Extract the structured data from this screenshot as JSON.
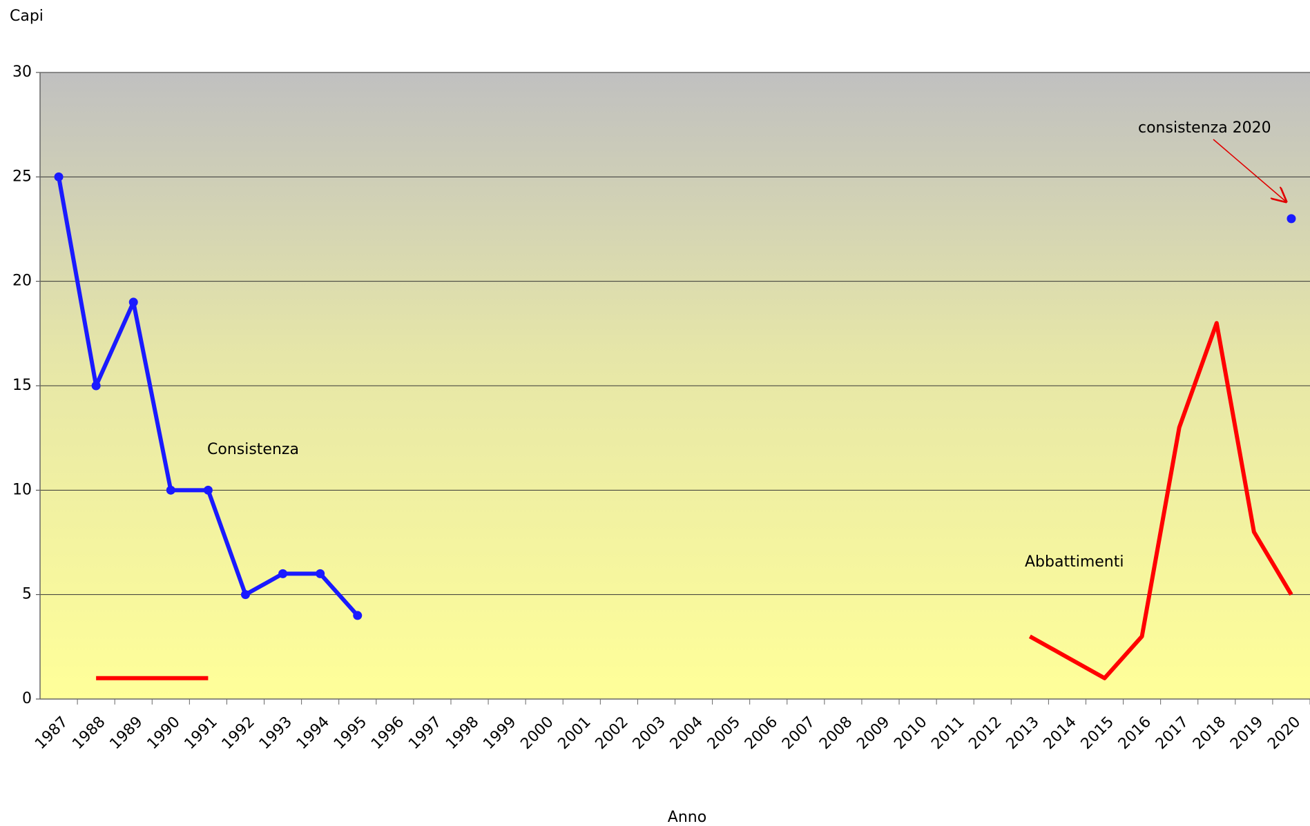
{
  "chart_data": {
    "type": "line",
    "y_label": "Capi",
    "x_label": "Anno",
    "annotation": "consistenza 2020",
    "categories": [
      "1987",
      "1988",
      "1989",
      "1990",
      "1991",
      "1992",
      "1993",
      "1994",
      "1995",
      "1996",
      "1997",
      "1998",
      "1999",
      "2000",
      "2001",
      "2002",
      "2003",
      "2004",
      "2005",
      "2006",
      "2007",
      "2008",
      "2009",
      "2010",
      "2011",
      "2012",
      "2013",
      "2014",
      "2015",
      "2016",
      "2017",
      "2018",
      "2019",
      "2020"
    ],
    "series": [
      {
        "name": "Consistenza",
        "color": "#1a1aff",
        "markers": true,
        "values": [
          25,
          15,
          19,
          10,
          10,
          5,
          6,
          6,
          4,
          null,
          null,
          null,
          null,
          null,
          null,
          null,
          null,
          null,
          null,
          null,
          null,
          null,
          null,
          null,
          null,
          null,
          null,
          null,
          null,
          null,
          null,
          null,
          null,
          23
        ]
      },
      {
        "name": "Abbattimenti",
        "color": "#ff0000",
        "markers": false,
        "values": [
          null,
          1,
          1,
          1,
          1,
          null,
          null,
          null,
          null,
          null,
          null,
          null,
          null,
          null,
          null,
          null,
          null,
          null,
          null,
          null,
          null,
          null,
          null,
          null,
          null,
          null,
          3,
          2,
          1,
          3,
          13,
          18,
          8,
          5
        ]
      }
    ],
    "ylim": [
      0,
      30
    ],
    "yticks": [
      0,
      5,
      10,
      15,
      20,
      25,
      30
    ],
    "grid": true
  }
}
